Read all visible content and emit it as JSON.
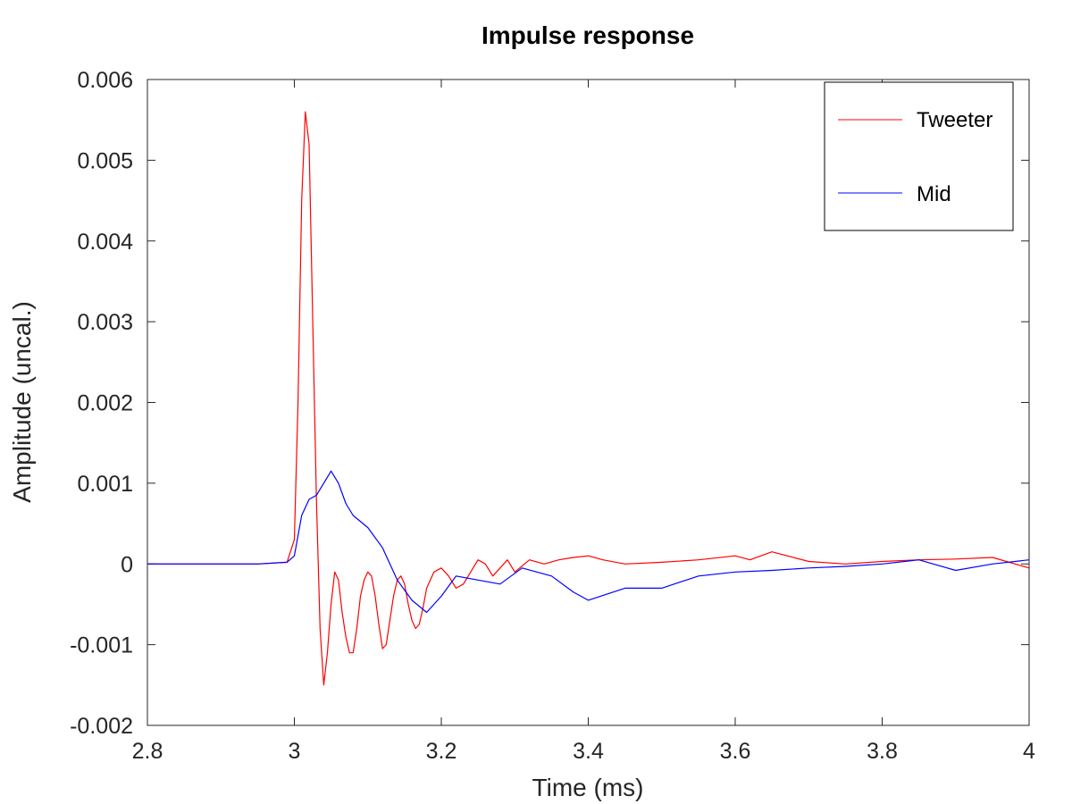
{
  "chart_data": {
    "type": "line",
    "title": "Impulse response",
    "xlabel": "Time (ms)",
    "ylabel": "Amplitude (uncal.)",
    "xlim": [
      2.8,
      4.0
    ],
    "ylim": [
      -0.002,
      0.006
    ],
    "xticks": [
      2.8,
      3.0,
      3.2,
      3.4,
      3.6,
      3.8,
      4.0
    ],
    "xtick_labels": [
      "2.8",
      "3",
      "3.2",
      "3.4",
      "3.6",
      "3.8",
      "4"
    ],
    "yticks": [
      -0.002,
      -0.001,
      0,
      0.001,
      0.002,
      0.003,
      0.004,
      0.005,
      0.006
    ],
    "ytick_labels": [
      "-0.002",
      "-0.001",
      "0",
      "0.001",
      "0.002",
      "0.003",
      "0.004",
      "0.005",
      "0.006"
    ],
    "grid": false,
    "legend_position": "top-right",
    "series": [
      {
        "name": "Tweeter",
        "color": "#ff0000",
        "x": [
          2.8,
          2.85,
          2.9,
          2.95,
          2.99,
          3.0,
          3.005,
          3.01,
          3.015,
          3.02,
          3.025,
          3.03,
          3.035,
          3.04,
          3.045,
          3.05,
          3.055,
          3.06,
          3.065,
          3.07,
          3.075,
          3.08,
          3.085,
          3.09,
          3.095,
          3.1,
          3.105,
          3.11,
          3.115,
          3.12,
          3.125,
          3.13,
          3.135,
          3.14,
          3.145,
          3.15,
          3.155,
          3.16,
          3.165,
          3.17,
          3.175,
          3.18,
          3.19,
          3.2,
          3.21,
          3.22,
          3.23,
          3.24,
          3.25,
          3.26,
          3.27,
          3.28,
          3.29,
          3.3,
          3.32,
          3.34,
          3.36,
          3.38,
          3.4,
          3.42,
          3.45,
          3.5,
          3.55,
          3.6,
          3.62,
          3.65,
          3.7,
          3.75,
          3.8,
          3.85,
          3.9,
          3.95,
          4.0
        ],
        "y": [
          0,
          0,
          0,
          0,
          2e-05,
          0.0003,
          0.002,
          0.0045,
          0.0056,
          0.0052,
          0.003,
          0.0008,
          -0.0008,
          -0.0015,
          -0.0011,
          -0.0005,
          -0.0001,
          -0.0002,
          -0.0006,
          -0.0009,
          -0.0011,
          -0.0011,
          -0.0008,
          -0.0004,
          -0.0002,
          -0.0001,
          -0.00015,
          -0.0004,
          -0.00075,
          -0.00105,
          -0.001,
          -0.0007,
          -0.0004,
          -0.0002,
          -0.00015,
          -0.00025,
          -0.0005,
          -0.0007,
          -0.0008,
          -0.00075,
          -0.00055,
          -0.0003,
          -0.0001,
          -5e-05,
          -0.00015,
          -0.0003,
          -0.00025,
          -0.0001,
          5e-05,
          0,
          -0.00015,
          -5e-05,
          5e-05,
          -0.0001,
          5e-05,
          0,
          5e-05,
          8e-05,
          0.0001,
          5e-05,
          0.0,
          2e-05,
          5e-05,
          0.0001,
          5e-05,
          0.00015,
          3e-05,
          0.0,
          3e-05,
          5e-05,
          6e-05,
          8e-05,
          -5e-05
        ]
      },
      {
        "name": "Mid",
        "color": "#0000ff",
        "x": [
          2.8,
          2.85,
          2.9,
          2.95,
          2.99,
          3.0,
          3.01,
          3.02,
          3.03,
          3.04,
          3.05,
          3.06,
          3.07,
          3.08,
          3.1,
          3.12,
          3.14,
          3.16,
          3.18,
          3.2,
          3.22,
          3.25,
          3.28,
          3.31,
          3.35,
          3.38,
          3.4,
          3.45,
          3.5,
          3.55,
          3.6,
          3.65,
          3.7,
          3.75,
          3.8,
          3.85,
          3.9,
          3.95,
          4.0
        ],
        "y": [
          0,
          0,
          0,
          0,
          2e-05,
          0.0001,
          0.0006,
          0.0008,
          0.00085,
          0.001,
          0.00115,
          0.001,
          0.00075,
          0.0006,
          0.00045,
          0.0002,
          -0.0002,
          -0.00045,
          -0.0006,
          -0.0004,
          -0.00015,
          -0.0002,
          -0.00025,
          -5e-05,
          -0.00015,
          -0.00035,
          -0.00045,
          -0.0003,
          -0.0003,
          -0.00015,
          -0.0001,
          -8e-05,
          -5e-05,
          -3e-05,
          0.0,
          5e-05,
          -8e-05,
          0.0,
          5e-05
        ]
      }
    ]
  }
}
